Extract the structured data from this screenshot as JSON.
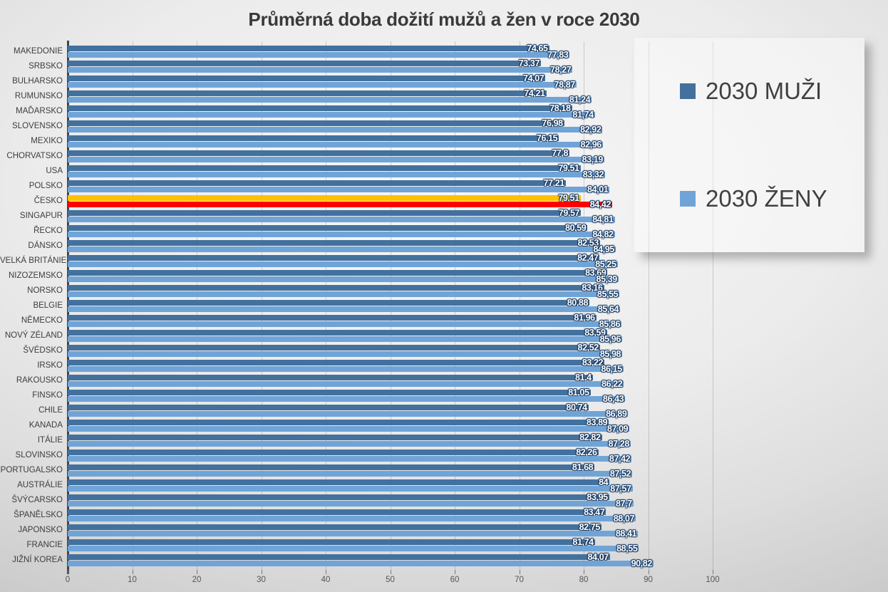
{
  "title": "Průměrná doba dožití mužů a žen v roce 2030",
  "legend": {
    "items": [
      {
        "label": "2030 MUŽI",
        "color": "#43719E"
      },
      {
        "label": "2030 ŽENY",
        "color": "#70A4D7"
      }
    ]
  },
  "axis": {
    "ticks": [
      "0",
      "10",
      "20",
      "30",
      "40",
      "50",
      "60",
      "70",
      "80",
      "90",
      "100"
    ]
  },
  "chart_data": {
    "type": "bar",
    "orientation": "horizontal",
    "title": "Průměrná doba dožití mužů a žen v roce 2030",
    "xlabel": "",
    "ylabel": "",
    "xlim": [
      0,
      100
    ],
    "grid": true,
    "legend_position": "right",
    "decimal_separator": ",",
    "categories": [
      "MAKEDONIE",
      "SRBSKO",
      "BULHARSKO",
      "RUMUNSKO",
      "MAĎARSKO",
      "SLOVENSKO",
      "MEXIKO",
      "CHORVATSKO",
      "USA",
      "POLSKO",
      "ČESKO",
      "SINGAPUR",
      "ŘECKO",
      "DÁNSKO",
      "VELKÁ BRITÁNIE",
      "NIZOZEMSKO",
      "NORSKO",
      "BELGIE",
      "NĚMECKO",
      "NOVÝ ZÉLAND",
      "ŠVÉDSKO",
      "IRSKO",
      "RAKOUSKO",
      "FINSKO",
      "CHILE",
      "KANADA",
      "ITÁLIE",
      "SLOVINSKO",
      "PORTUGALSKO",
      "AUSTRÁLIE",
      "ŠVÝCARSKO",
      "ŠPANĚLSKO",
      "JAPONSKO",
      "FRANCIE",
      "JIŽNÍ KOREA"
    ],
    "series": [
      {
        "name": "2030 MUŽI",
        "color": "#43719E",
        "values": [
          74.65,
          73.37,
          74.07,
          74.21,
          78.18,
          76.98,
          76.15,
          77.8,
          79.51,
          77.21,
          79.51,
          79.57,
          80.59,
          82.53,
          82.47,
          83.69,
          83.16,
          80.88,
          81.96,
          83.59,
          82.52,
          83.22,
          81.4,
          81.05,
          80.74,
          83.89,
          82.82,
          82.26,
          81.68,
          84,
          83.95,
          83.47,
          82.75,
          81.74,
          84.07
        ],
        "labels": [
          "74,65",
          "73,37",
          "74,07",
          "74,21",
          "78,18",
          "76,98",
          "76,15",
          "77,8",
          "79,51",
          "77,21",
          "79,51",
          "79,57",
          "80,59",
          "82,53",
          "82,47",
          "83,69",
          "83,16",
          "80,88",
          "81,96",
          "83,59",
          "82,52",
          "83,22",
          "81,4",
          "81,05",
          "80,74",
          "83,89",
          "82,82",
          "82,26",
          "81,68",
          "84",
          "83,95",
          "83,47",
          "82,75",
          "81,74",
          "84,07"
        ]
      },
      {
        "name": "2030 ŽENY",
        "color": "#70A4D7",
        "values": [
          77.83,
          78.27,
          78.87,
          81.24,
          81.74,
          82.92,
          82.96,
          83.19,
          83.32,
          84.01,
          84.42,
          84.81,
          84.82,
          84.95,
          85.25,
          85.39,
          85.55,
          85.64,
          85.86,
          85.96,
          85.98,
          86.15,
          86.22,
          86.43,
          86.89,
          87.09,
          87.28,
          87.42,
          87.52,
          87.57,
          87.7,
          88.07,
          88.41,
          88.55,
          90.82
        ],
        "labels": [
          "77,83",
          "78,27",
          "78,87",
          "81,24",
          "81,74",
          "82,92",
          "82,96",
          "83,19",
          "83,32",
          "84,01",
          "84,42",
          "84,81",
          "84,82",
          "84,95",
          "85,25",
          "85,39",
          "85,55",
          "85,64",
          "85,86",
          "85,96",
          "85,98",
          "86,15",
          "86,22",
          "86,43",
          "86,89",
          "87,09",
          "87,28",
          "87,42",
          "87,52",
          "87,57",
          "87,7",
          "88,07",
          "88,41",
          "88,55",
          "90,82"
        ]
      }
    ],
    "highlight": {
      "category": "ČESKO",
      "series_colors": [
        "#FFC000",
        "#FF0000"
      ]
    }
  }
}
